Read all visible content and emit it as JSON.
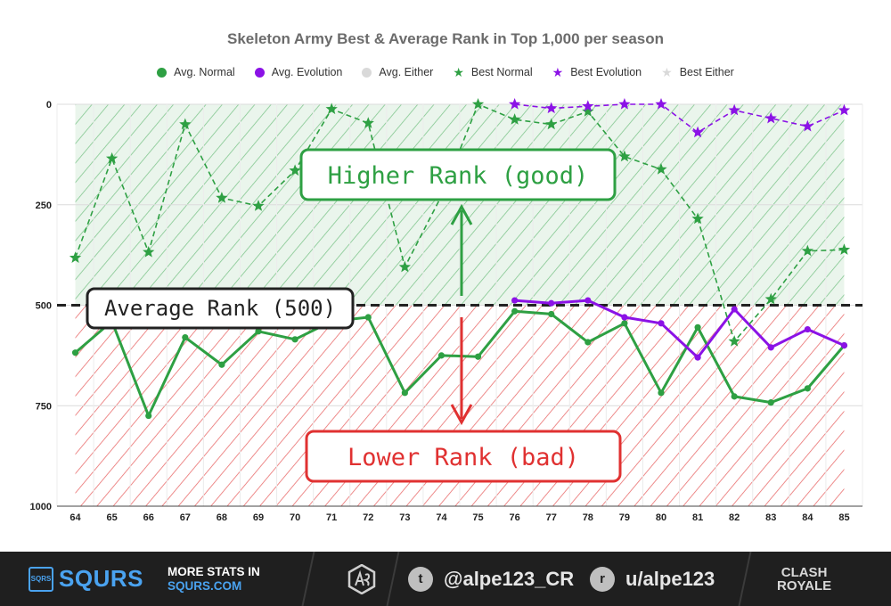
{
  "chart_data": {
    "type": "line",
    "title": "Skeleton Army Best & Average Rank in Top 1,000 per season",
    "xlabel": "",
    "ylabel": "",
    "categories": [
      "64",
      "65",
      "66",
      "67",
      "68",
      "69",
      "70",
      "71",
      "72",
      "73",
      "74",
      "75",
      "76",
      "77",
      "78",
      "79",
      "80",
      "81",
      "82",
      "83",
      "84",
      "85"
    ],
    "y_ticks": [
      "0",
      "250",
      "500",
      "750",
      "1000"
    ],
    "ylim": [
      0,
      1000
    ],
    "y_inverted": true,
    "grid": true,
    "legend_position": "top",
    "series": [
      {
        "name": "Avg. Normal",
        "kind": "avg",
        "color": "#2ea043",
        "values": [
          618,
          540,
          775,
          580,
          648,
          565,
          585,
          540,
          530,
          718,
          625,
          628,
          515,
          522,
          592,
          545,
          718,
          555,
          727,
          742,
          707,
          600
        ]
      },
      {
        "name": "Avg. Evolution",
        "kind": "avg",
        "color": "#8b12e6",
        "values": [
          null,
          null,
          null,
          null,
          null,
          null,
          null,
          null,
          null,
          null,
          null,
          null,
          488,
          495,
          488,
          530,
          545,
          630,
          510,
          605,
          560,
          600
        ]
      },
      {
        "name": "Avg. Either",
        "kind": "avg",
        "color": "#d9d9d9",
        "values": [
          null,
          null,
          null,
          null,
          null,
          null,
          null,
          null,
          null,
          null,
          null,
          null,
          null,
          null,
          null,
          null,
          null,
          null,
          null,
          null,
          null,
          null
        ]
      },
      {
        "name": "Best Normal",
        "kind": "best",
        "color": "#2ea043",
        "values": [
          382,
          135,
          368,
          50,
          233,
          253,
          165,
          12,
          47,
          405,
          228,
          0,
          38,
          50,
          18,
          130,
          162,
          285,
          590,
          485,
          365,
          362
        ]
      },
      {
        "name": "Best Evolution",
        "kind": "best",
        "color": "#8b12e6",
        "values": [
          null,
          null,
          null,
          null,
          null,
          null,
          null,
          null,
          null,
          null,
          null,
          null,
          0,
          10,
          5,
          0,
          0,
          70,
          15,
          35,
          55,
          15
        ]
      },
      {
        "name": "Best Either",
        "kind": "best",
        "color": "#d9d9d9",
        "values": [
          null,
          null,
          null,
          null,
          null,
          null,
          null,
          null,
          null,
          null,
          null,
          null,
          null,
          null,
          null,
          null,
          null,
          null,
          null,
          null,
          null,
          null
        ]
      }
    ],
    "average_line": {
      "value": 500,
      "label": "Average Rank (500)"
    },
    "annotations": {
      "higher": "Higher Rank (good)",
      "lower": "Lower Rank (bad)"
    },
    "zone_colors": {
      "good": "#2ea043",
      "bad": "#e03131",
      "avg_line": "#222222"
    }
  },
  "footer": {
    "brand": "SQURS",
    "brand_logo": "SQRS",
    "more_line1": "MORE STATS IN",
    "more_line2": "SQURS.COM",
    "twitter": "@alpe123_CR",
    "reddit": "u/alpe123",
    "game_logo_line1": "CLASH",
    "game_logo_line2": "ROYALE",
    "icons": [
      "sqrs-logo-icon",
      "as-logo-icon",
      "twitter-icon",
      "reddit-icon",
      "clash-royale-logo-icon"
    ]
  }
}
